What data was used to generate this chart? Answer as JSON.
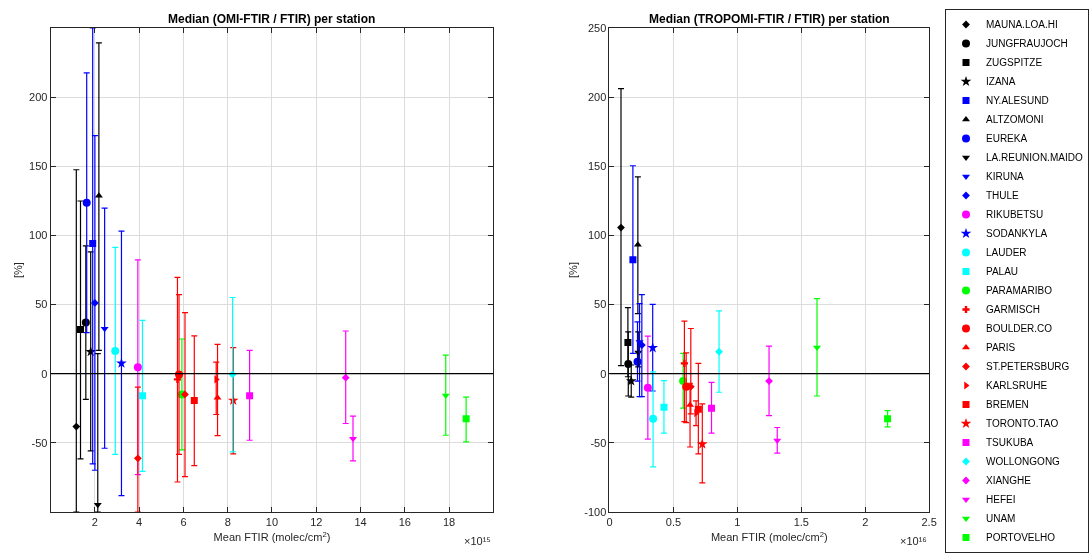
{
  "chart_data": [
    {
      "type": "scatter",
      "title": "Median (OMI-FTIR / FTIR) per station",
      "xlabel": "Mean FTIR (molec/cm$^{2}$)",
      "ylabel": "[%]",
      "annotations": [
        "×10¹⁵"
      ],
      "xlim": [
        0,
        20
      ],
      "xticks": [
        2,
        4,
        6,
        8,
        10,
        12,
        14,
        16,
        18
      ],
      "ylim": [
        -100,
        250
      ],
      "yticks": [
        -50,
        0,
        50,
        100,
        150,
        200
      ],
      "grid": true,
      "legend": false,
      "ref_lines": [
        {
          "axis": "y",
          "value": 0,
          "color": "#000000"
        }
      ],
      "series": [
        {
          "color": "#000000",
          "marker": "diamond",
          "x": [
            1.16
          ],
          "values": [
            -38.2
          ],
          "errors": [
            [
              -100,
              147.5
            ]
          ]
        },
        {
          "color": "#000000",
          "marker": "circle",
          "x": [
            1.59
          ],
          "values": [
            37
          ],
          "errors": [
            [
              -18.6,
              92.5
            ]
          ]
        },
        {
          "color": "#000000",
          "marker": "square",
          "x": [
            1.35
          ],
          "values": [
            31.9
          ],
          "errors": [
            [
              -61.6,
              124.9
            ]
          ]
        },
        {
          "color": "#000000",
          "marker": "star",
          "x": [
            1.81
          ],
          "values": [
            15.9
          ],
          "errors": [
            [
              -55.8,
              88.1
            ]
          ]
        },
        {
          "color": "#0000ff",
          "marker": "square",
          "x": [
            1.9
          ],
          "values": [
            94.2
          ],
          "errors": [
            [
              -65.2,
              250
            ]
          ]
        },
        {
          "color": "#000000",
          "marker": "triangle",
          "x": [
            2.18
          ],
          "values": [
            128.7
          ],
          "errors": [
            [
              16.9,
              239.3
            ]
          ]
        },
        {
          "color": "#0000ff",
          "marker": "circle",
          "x": [
            1.63
          ],
          "values": [
            123.6
          ],
          "errors": [
            [
              29.7,
              217.6
            ]
          ]
        },
        {
          "color": "#000000",
          "marker": "triangle-down",
          "x": [
            2.13
          ],
          "values": [
            -94.7
          ],
          "errors": [
            [
              -100,
              14.5
            ]
          ]
        },
        {
          "color": "#0000ff",
          "marker": "triangle-down",
          "x": [
            2.44
          ],
          "values": [
            32.6
          ],
          "errors": [
            [
              -53.9,
              119.8
            ]
          ]
        },
        {
          "color": "#0000ff",
          "marker": "diamond",
          "x": [
            2.0
          ],
          "values": [
            51.2
          ],
          "errors": [
            [
              -69.8,
              172.2
            ]
          ]
        },
        {
          "color": "#ff00ff",
          "marker": "circle",
          "x": [
            3.94
          ],
          "values": [
            4.6
          ],
          "errors": [
            [
              -73,
              82.3
            ]
          ]
        },
        {
          "color": "#0000ff",
          "marker": "star",
          "x": [
            3.2
          ],
          "values": [
            7.5
          ],
          "errors": [
            [
              -88.2,
              103.1
            ]
          ]
        },
        {
          "color": "#00ffff",
          "marker": "circle",
          "x": [
            2.92
          ],
          "values": [
            16.4
          ],
          "errors": [
            [
              -58.3,
              91.3
            ]
          ]
        },
        {
          "color": "#00ffff",
          "marker": "square",
          "x": [
            4.15
          ],
          "values": [
            -15.9
          ],
          "errors": [
            [
              -70.6,
              38.6
            ]
          ]
        },
        {
          "color": "#00ff00",
          "marker": "circle",
          "x": [
            5.93
          ],
          "values": [
            -15
          ],
          "errors": [
            [
              -55.1,
              25.1
            ]
          ]
        },
        {
          "color": "#ff0000",
          "marker": "cross",
          "x": [
            5.73
          ],
          "values": [
            -4.1
          ],
          "errors": [
            [
              -78.3,
              69.6
            ]
          ]
        },
        {
          "color": "#ff0000",
          "marker": "circle",
          "x": [
            5.8
          ],
          "values": [
            -0.5
          ],
          "errors": [
            [
              -58.3,
              57.2
            ]
          ]
        },
        {
          "color": "#ff0000",
          "marker": "triangle",
          "x": [
            7.54
          ],
          "values": [
            -17.4
          ],
          "errors": [
            [
              -44.7,
              21.2
            ]
          ]
        },
        {
          "color": "#ff0000",
          "marker": "diamond",
          "x": [
            6.07
          ],
          "values": [
            -15
          ],
          "errors": [
            [
              -74.4,
              44.2
            ]
          ]
        },
        {
          "color": "#ff0000",
          "marker": "triangle-right",
          "x": [
            7.48
          ],
          "values": [
            -4.1
          ],
          "errors": [
            [
              -29.5,
              8.4
            ]
          ]
        },
        {
          "color": "#ff0000",
          "marker": "square",
          "x": [
            6.49
          ],
          "values": [
            -19.3
          ],
          "errors": [
            [
              -66.4,
              27.3
            ]
          ]
        },
        {
          "color": "#ff0000",
          "marker": "star",
          "x": [
            8.25
          ],
          "values": [
            -19.3
          ],
          "errors": [
            [
              -58,
              18.8
            ]
          ]
        },
        {
          "color": "#ff00ff",
          "marker": "square",
          "x": [
            8.99
          ],
          "values": [
            -15.9
          ],
          "errors": [
            [
              -48.1,
              16.9
            ]
          ]
        },
        {
          "color": "#00ffff",
          "marker": "diamond",
          "x": [
            8.22
          ],
          "values": [
            -0.5
          ],
          "errors": [
            [
              -56.5,
              55.1
            ]
          ]
        },
        {
          "color": "#ff00ff",
          "marker": "diamond",
          "x": [
            13.33
          ],
          "values": [
            -2.9
          ],
          "errors": [
            [
              -36,
              30.9
            ]
          ]
        },
        {
          "color": "#ff00ff",
          "marker": "triangle-down",
          "x": [
            13.66
          ],
          "values": [
            -47.1
          ],
          "errors": [
            [
              -63,
              -30.7
            ]
          ]
        },
        {
          "color": "#00ff00",
          "marker": "triangle-down",
          "x": [
            17.85
          ],
          "values": [
            -15.7
          ],
          "errors": [
            [
              -44.5,
              13.5
            ]
          ]
        },
        {
          "color": "#00ff00",
          "marker": "square",
          "x": [
            18.77
          ],
          "values": [
            -32.6
          ],
          "errors": [
            [
              -49.3,
              -17
            ]
          ]
        },
        {
          "color": "#ff0000",
          "marker": "diamond",
          "x": [
            3.94
          ],
          "values": [
            -61.2
          ],
          "errors": [
            [
              -100,
              -9.7
            ]
          ]
        }
      ]
    },
    {
      "type": "scatter",
      "title": "Median (TROPOMI-FTIR / FTIR) per station",
      "xlabel": "Mean FTIR (molec/cm$^{2}$)",
      "ylabel": "[%]",
      "annotations": [
        "×10¹⁶"
      ],
      "xlim": [
        0,
        2.5
      ],
      "xticks": [
        0,
        0.5,
        1,
        1.5,
        2,
        2.5
      ],
      "ylim": [
        -100,
        250
      ],
      "yticks": [
        -100,
        -50,
        0,
        50,
        100,
        150,
        200,
        250
      ],
      "grid": true,
      "legend": "right",
      "ref_lines": [
        {
          "axis": "y",
          "value": 0,
          "color": "#000000"
        }
      ],
      "series": [
        {
          "name": "MAUNA.LOA.HI",
          "color": "#000000",
          "marker": "diamond",
          "x": [
            0.09
          ],
          "values": [
            105.7
          ],
          "errors": [
            [
              5.8,
              206.1
            ]
          ]
        },
        {
          "name": "JUNGFRAUJOCH",
          "color": "#000000",
          "marker": "circle",
          "x": [
            0.147
          ],
          "values": [
            7
          ],
          "errors": [
            [
              -16.1,
              30.3
            ]
          ]
        },
        {
          "name": "ZUGSPITZE",
          "color": "#000000",
          "marker": "square",
          "x": [
            0.144
          ],
          "values": [
            22.6
          ],
          "errors": [
            [
              -2.2,
              47.8
            ]
          ]
        },
        {
          "name": "IZANA",
          "color": "#000000",
          "marker": "star",
          "x": [
            0.17
          ],
          "values": [
            -5.3
          ],
          "errors": [
            [
              -17,
              6.3
            ]
          ]
        },
        {
          "name": "NY.ALESUND",
          "color": "#0000ff",
          "marker": "square",
          "x": [
            0.183
          ],
          "values": [
            82.4
          ],
          "errors": [
            [
              14.7,
              150.4
            ]
          ]
        },
        {
          "name": "ALTZOMONI",
          "color": "#000000",
          "marker": "triangle",
          "x": [
            0.222
          ],
          "values": [
            93.2
          ],
          "errors": [
            [
              43.5,
              142.4
            ]
          ]
        },
        {
          "name": "EUREKA",
          "color": "#0000ff",
          "marker": "circle",
          "x": [
            0.219
          ],
          "values": [
            8.6
          ],
          "errors": [
            [
              -5.3,
              37.5
            ]
          ]
        },
        {
          "name": "LA.REUNION.MAIDO",
          "color": "#000000",
          "marker": "triangle-down",
          "x": [
            0.225
          ],
          "values": [
            15.4
          ],
          "errors": [
            [
              5,
              30.3
            ]
          ]
        },
        {
          "name": "KIRUNA",
          "color": "#0000ff",
          "marker": "triangle-down",
          "x": [
            0.235
          ],
          "values": [
            23
          ],
          "errors": [
            [
              -16.6,
              50.7
            ]
          ]
        },
        {
          "name": "THULE",
          "color": "#0000ff",
          "marker": "diamond",
          "x": [
            0.253
          ],
          "values": [
            20.7
          ],
          "errors": [
            [
              -16.6,
              57.2
            ]
          ]
        },
        {
          "name": "RIKUBETSU",
          "color": "#ff00ff",
          "marker": "circle",
          "x": [
            0.3
          ],
          "values": [
            -10.1
          ],
          "errors": [
            [
              -47.3,
              27.2
            ]
          ]
        },
        {
          "name": "SODANKYLA",
          "color": "#0000ff",
          "marker": "star",
          "x": [
            0.338
          ],
          "values": [
            18.7
          ],
          "errors": [
            [
              -12.5,
              50.2
            ]
          ]
        },
        {
          "name": "LAUDER",
          "color": "#00ffff",
          "marker": "circle",
          "x": [
            0.341
          ],
          "values": [
            -32.6
          ],
          "errors": [
            [
              -67.4,
              1.4
            ]
          ]
        },
        {
          "name": "PALAU",
          "color": "#00ffff",
          "marker": "square",
          "x": [
            0.426
          ],
          "values": [
            -24.2
          ],
          "errors": [
            [
              -42.9,
              -5
            ]
          ]
        },
        {
          "name": "PARAMARIBO",
          "color": "#00ff00",
          "marker": "circle",
          "x": [
            0.576
          ],
          "values": [
            -5.3
          ],
          "errors": [
            [
              -24.9,
              14.7
            ]
          ]
        },
        {
          "name": "GARMISCH",
          "color": "#ff0000",
          "marker": "cross",
          "x": [
            0.586
          ],
          "values": [
            7.5
          ],
          "errors": [
            [
              -34.6,
              38
            ]
          ]
        },
        {
          "name": "BOULDER.CO",
          "color": "#ff0000",
          "marker": "circle",
          "x": [
            0.6
          ],
          "values": [
            -9.4
          ],
          "errors": [
            [
              -35.3,
              15.1
            ]
          ]
        },
        {
          "name": "PARIS",
          "color": "#ff0000",
          "marker": "triangle",
          "x": [
            0.63
          ],
          "values": [
            -22.6
          ],
          "errors": [
            [
              -53,
              -6.9
            ]
          ]
        },
        {
          "name": "ST.PETERSBURG",
          "color": "#ff0000",
          "marker": "diamond",
          "x": [
            0.636
          ],
          "values": [
            -9.4
          ],
          "errors": [
            [
              -29,
              32.7
            ]
          ]
        },
        {
          "name": "KARLSRUHE",
          "color": "#ff0000",
          "marker": "triangle-right",
          "x": [
            0.677
          ],
          "values": [
            -28.5
          ],
          "errors": [
            [
              -37.5,
              -19.7
            ]
          ]
        },
        {
          "name": "BREMEN",
          "color": "#ff0000",
          "marker": "square",
          "x": [
            0.695
          ],
          "values": [
            -25.7
          ],
          "errors": [
            [
              -58,
              7.5
            ]
          ]
        },
        {
          "name": "TORONTO.TAO",
          "color": "#ff0000",
          "marker": "star",
          "x": [
            0.726
          ],
          "values": [
            -50.9
          ],
          "errors": [
            [
              -79,
              -21.8
            ]
          ]
        },
        {
          "name": "TSUKUBA",
          "color": "#ff00ff",
          "marker": "square",
          "x": [
            0.798
          ],
          "values": [
            -24.9
          ],
          "errors": [
            [
              -42.9,
              -6.2
            ]
          ]
        },
        {
          "name": "WOLLONGONG",
          "color": "#00ffff",
          "marker": "diamond",
          "x": [
            0.857
          ],
          "values": [
            15.9
          ],
          "errors": [
            [
              -13.4,
              45.4
            ]
          ]
        },
        {
          "name": "XIANGHE",
          "color": "#ff00ff",
          "marker": "diamond",
          "x": [
            1.248
          ],
          "values": [
            -5.3
          ],
          "errors": [
            [
              -30.3,
              20
            ]
          ]
        },
        {
          "name": "HEFEI",
          "color": "#ff00ff",
          "marker": "triangle-down",
          "x": [
            1.312
          ],
          "values": [
            -48.3
          ],
          "errors": [
            [
              -57.4,
              -38.9
            ]
          ]
        },
        {
          "name": "UNAM",
          "color": "#00ff00",
          "marker": "triangle-down",
          "x": [
            1.623
          ],
          "values": [
            19
          ],
          "errors": [
            [
              -16.1,
              54.3
            ]
          ]
        },
        {
          "name": "PORTOVELHO",
          "color": "#00ff00",
          "marker": "square",
          "x": [
            2.175
          ],
          "values": [
            -32.6
          ],
          "errors": [
            [
              -38.4,
              -26.7
            ]
          ]
        }
      ]
    }
  ]
}
